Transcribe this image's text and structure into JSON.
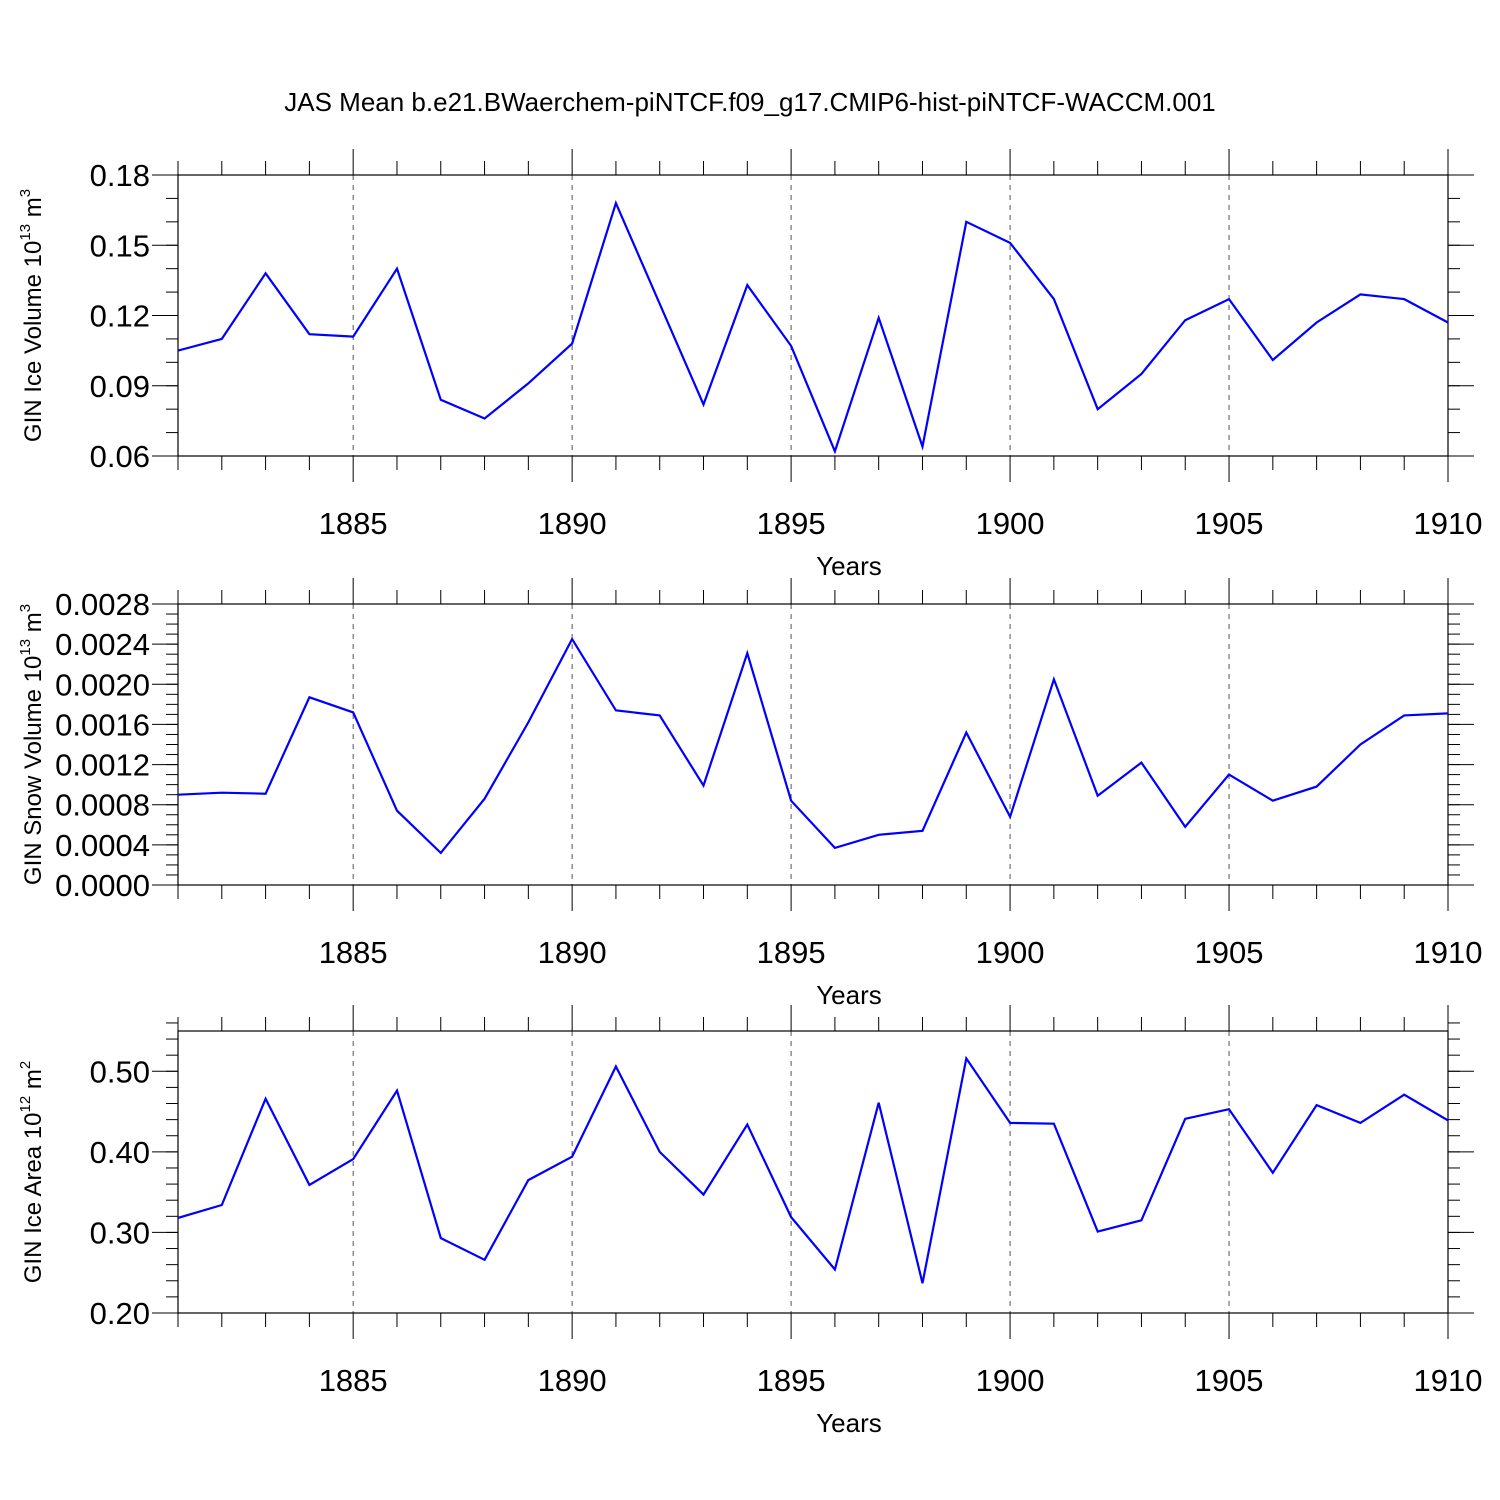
{
  "title": "JAS Mean b.e21.BWaerchem-piNTCF.f09_g17.CMIP6-hist-piNTCF-WACCM.001",
  "colors": {
    "line": "#0000ff",
    "axes": "#000000",
    "grid": "#555555"
  },
  "chart_data": [
    {
      "type": "line",
      "ylabel": {
        "text": "GIN Ice Volume 10",
        "sup": "13",
        "unit": " m",
        "unit_sup": "3"
      },
      "xlabel": "Years",
      "xlim": [
        1881,
        1910
      ],
      "ylim": [
        0.06,
        0.18
      ],
      "xticks": [
        1885,
        1890,
        1895,
        1900,
        1905,
        1910
      ],
      "yticks": [
        0.06,
        0.09,
        0.12,
        0.15,
        0.18
      ],
      "ytick_labels": [
        "0.06",
        "0.09",
        "0.12",
        "0.15",
        "0.18"
      ],
      "ytick_minor_step": 0.01,
      "grid": "vertical-dashed",
      "x": [
        1881,
        1882,
        1883,
        1884,
        1885,
        1886,
        1887,
        1888,
        1889,
        1890,
        1891,
        1892,
        1893,
        1894,
        1895,
        1896,
        1897,
        1898,
        1899,
        1900,
        1901,
        1902,
        1903,
        1904,
        1905,
        1906,
        1907,
        1908,
        1909,
        1910
      ],
      "series": [
        {
          "name": "GIN Ice Volume",
          "values": [
            0.105,
            0.11,
            0.138,
            0.112,
            0.111,
            0.14,
            0.084,
            0.076,
            0.091,
            0.108,
            0.168,
            0.125,
            0.082,
            0.133,
            0.107,
            0.062,
            0.119,
            0.064,
            0.16,
            0.151,
            0.127,
            0.08,
            0.095,
            0.118,
            0.127,
            0.101,
            0.117,
            0.129,
            0.127,
            0.117
          ]
        }
      ]
    },
    {
      "type": "line",
      "ylabel": {
        "text": "GIN Snow Volume 10",
        "sup": "13",
        "unit": " m",
        "unit_sup": "3"
      },
      "xlabel": "Years",
      "xlim": [
        1881,
        1910
      ],
      "ylim": [
        0.0,
        0.0028
      ],
      "xticks": [
        1885,
        1890,
        1895,
        1900,
        1905,
        1910
      ],
      "yticks": [
        0.0,
        0.0004,
        0.0008,
        0.0012,
        0.0016,
        0.002,
        0.0024,
        0.0028
      ],
      "ytick_labels": [
        "0.0000",
        "0.0004",
        "0.0008",
        "0.0012",
        "0.0016",
        "0.0020",
        "0.0024",
        "0.0028"
      ],
      "ytick_minor_step": 0.0001,
      "grid": "vertical-dashed",
      "x": [
        1881,
        1882,
        1883,
        1884,
        1885,
        1886,
        1887,
        1888,
        1889,
        1890,
        1891,
        1892,
        1893,
        1894,
        1895,
        1896,
        1897,
        1898,
        1899,
        1900,
        1901,
        1902,
        1903,
        1904,
        1905,
        1906,
        1907,
        1908,
        1909,
        1910
      ],
      "series": [
        {
          "name": "GIN Snow Volume",
          "values": [
            0.0009,
            0.00092,
            0.00091,
            0.00187,
            0.00172,
            0.00074,
            0.00032,
            0.00086,
            0.00162,
            0.00245,
            0.00174,
            0.00169,
            0.00099,
            0.00231,
            0.00084,
            0.00037,
            0.0005,
            0.00054,
            0.00152,
            0.00068,
            0.00205,
            0.00089,
            0.00122,
            0.00058,
            0.0011,
            0.00084,
            0.00098,
            0.0014,
            0.00169,
            0.00171
          ]
        }
      ]
    },
    {
      "type": "line",
      "ylabel": {
        "text": "GIN Ice Area 10",
        "sup": "12",
        "unit": " m",
        "unit_sup": "2"
      },
      "xlabel": "Years",
      "xlim": [
        1881,
        1910
      ],
      "ylim": [
        0.2,
        0.55
      ],
      "xticks": [
        1885,
        1890,
        1895,
        1900,
        1905,
        1910
      ],
      "yticks": [
        0.2,
        0.3,
        0.4,
        0.5
      ],
      "ytick_labels": [
        "0.20",
        "0.30",
        "0.40",
        "0.50"
      ],
      "ytick_minor_step": 0.02,
      "grid": "vertical-dashed",
      "x": [
        1881,
        1882,
        1883,
        1884,
        1885,
        1886,
        1887,
        1888,
        1889,
        1890,
        1891,
        1892,
        1893,
        1894,
        1895,
        1896,
        1897,
        1898,
        1899,
        1900,
        1901,
        1902,
        1903,
        1904,
        1905,
        1906,
        1907,
        1908,
        1909,
        1910
      ],
      "series": [
        {
          "name": "GIN Ice Area",
          "values": [
            0.318,
            0.334,
            0.466,
            0.359,
            0.391,
            0.476,
            0.293,
            0.266,
            0.365,
            0.394,
            0.506,
            0.4,
            0.347,
            0.434,
            0.319,
            0.254,
            0.461,
            0.237,
            0.516,
            0.436,
            0.435,
            0.301,
            0.315,
            0.441,
            0.453,
            0.374,
            0.458,
            0.436,
            0.471,
            0.439
          ]
        }
      ]
    }
  ]
}
